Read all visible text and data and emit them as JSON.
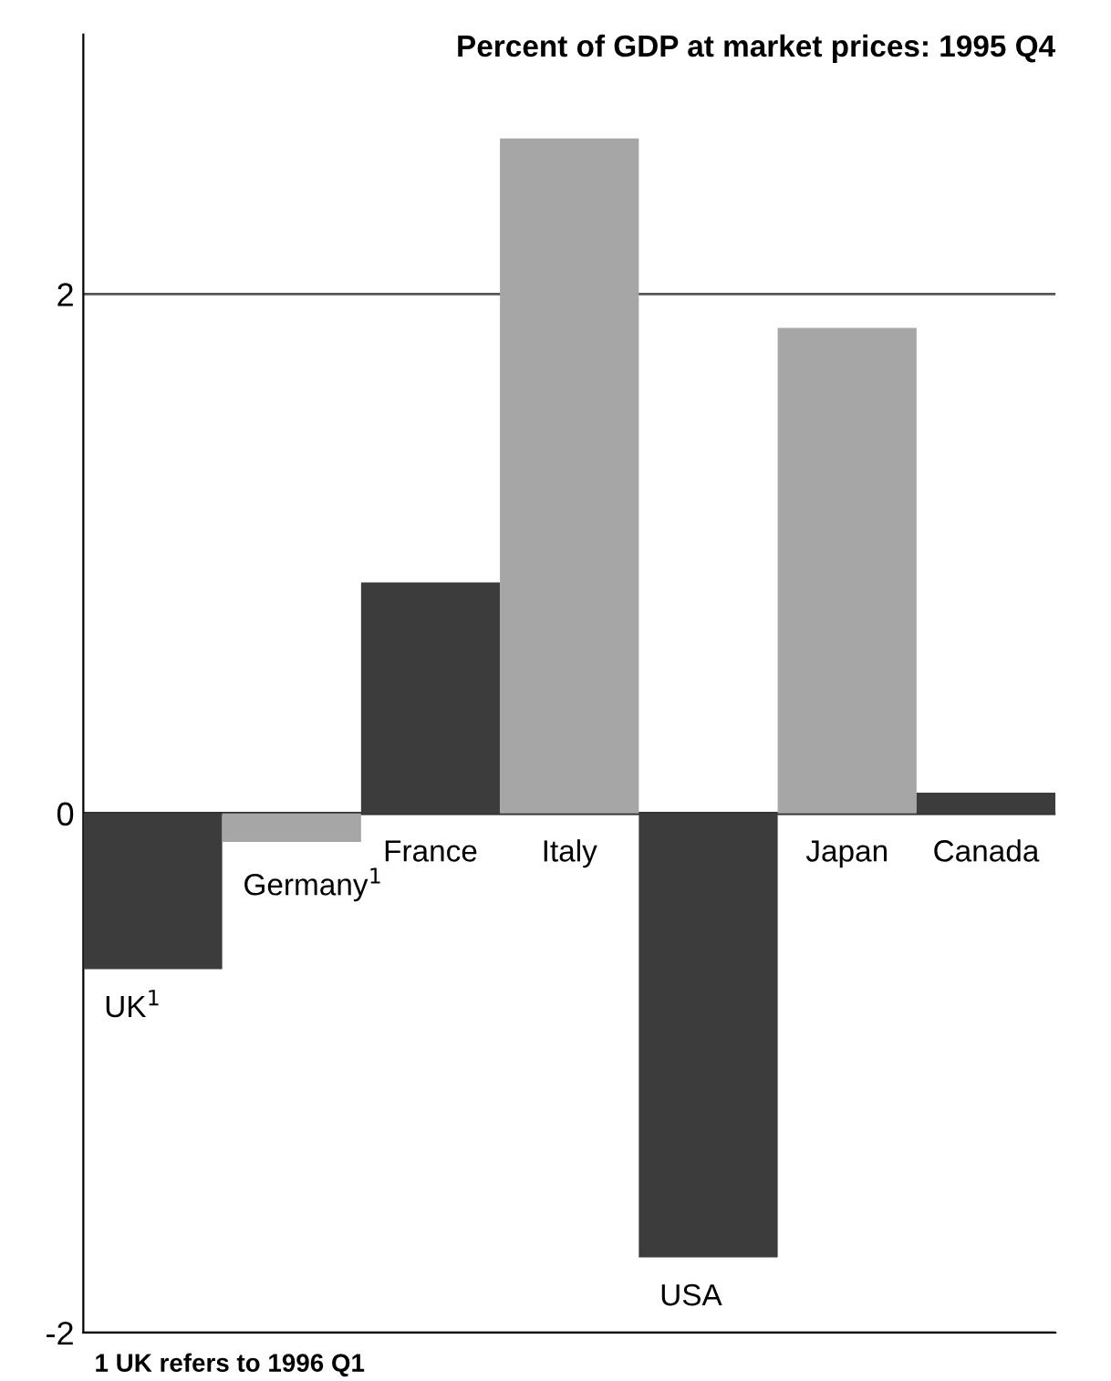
{
  "chart_data": {
    "type": "bar",
    "title": "Percent of GDP at market prices: 1995 Q4",
    "categories": [
      "UK$^{1}$",
      "Germany$^{1}$",
      "France",
      "Italy",
      "USA",
      "Japan",
      "Canada"
    ],
    "values": [
      -0.6,
      -0.11,
      0.89,
      2.6,
      -1.71,
      1.87,
      0.08
    ],
    "colors": [
      "#3c3c3c",
      "#a6a6a6",
      "#3c3c3c",
      "#a6a6a6",
      "#3c3c3c",
      "#a6a6a6",
      "#3c3c3c"
    ],
    "ylim": [
      -2,
      3
    ],
    "yticks": [
      -2,
      0,
      2
    ],
    "grid": "y",
    "annotations": [
      "1 UK refers to 1996 Q1"
    ]
  }
}
